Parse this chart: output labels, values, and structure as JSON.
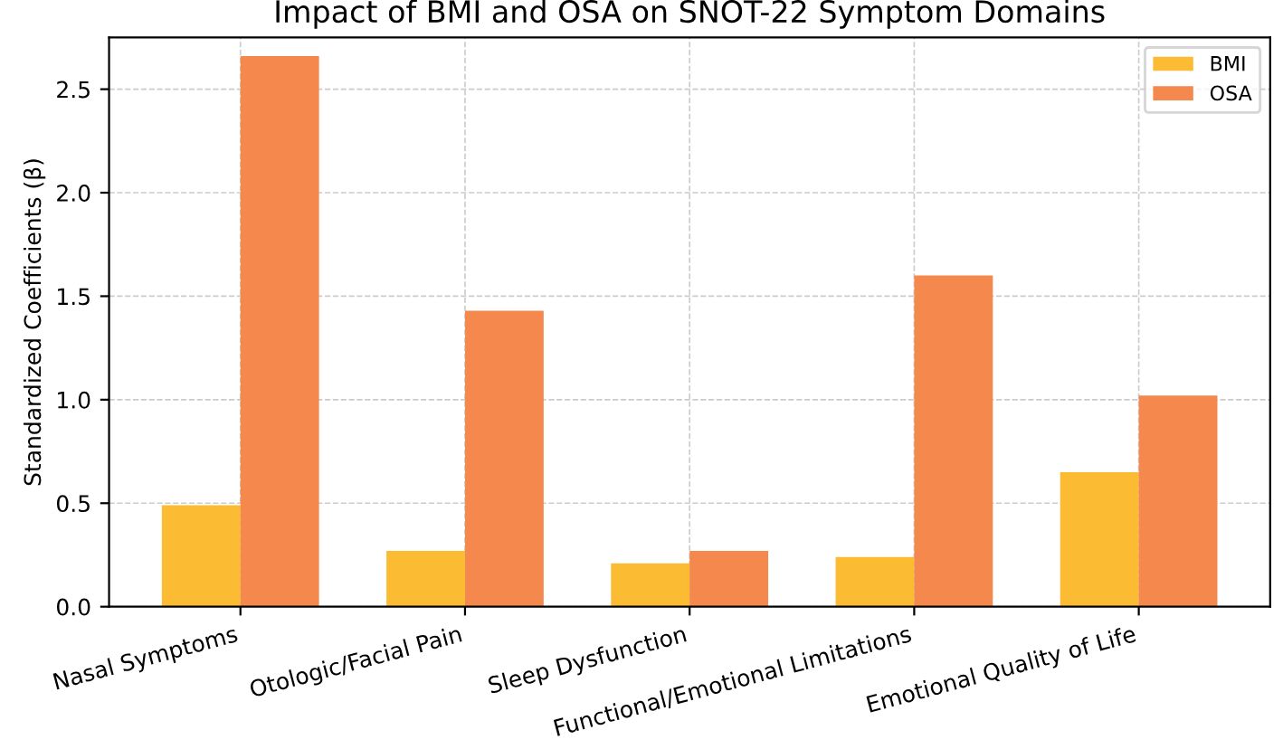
{
  "chart_data": {
    "type": "bar",
    "title": "Impact of BMI and OSA on SNOT-22 Symptom Domains",
    "ylabel": "Standardized Coefficients (β)",
    "categories": [
      "Nasal Symptoms",
      "Otologic/Facial Pain",
      "Sleep Dysfunction",
      "Functional/Emotional Limitations",
      "Emotional Quality of Life"
    ],
    "series": [
      {
        "name": "BMI",
        "color": "#fbbc34",
        "values": [
          0.49,
          0.27,
          0.21,
          0.24,
          0.65
        ]
      },
      {
        "name": "OSA",
        "color": "#f5884c",
        "values": [
          2.66,
          1.43,
          0.27,
          1.6,
          1.02
        ]
      }
    ],
    "ylim": [
      0,
      2.75
    ],
    "yticks": [
      {
        "value": 0,
        "label": "0.0"
      },
      {
        "value": 0.5,
        "label": "0.5"
      },
      {
        "value": 1,
        "label": "1.0"
      },
      {
        "value": 1.5,
        "label": "1.5"
      },
      {
        "value": 2,
        "label": "2.0"
      },
      {
        "value": 2.5,
        "label": "2.5"
      }
    ],
    "grid": true,
    "legend": "top right"
  }
}
